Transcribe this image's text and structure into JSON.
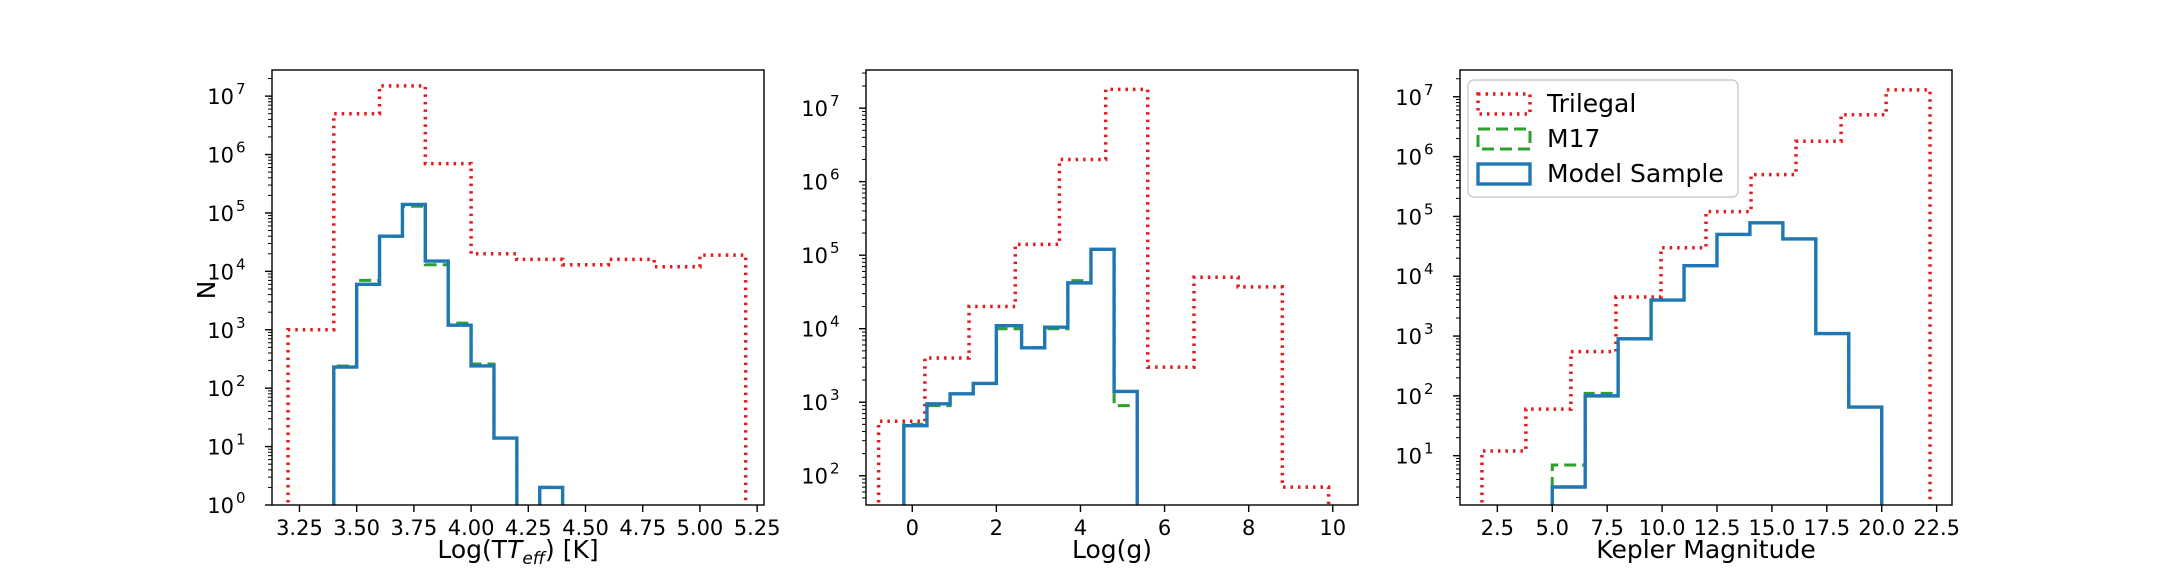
{
  "figure": {
    "background": "#ffffff"
  },
  "colors": {
    "trilegal": "#e41a1c",
    "m17": "#2ca02c",
    "model": "#1f77b4"
  },
  "legend": {
    "placement": "top-left of panel 3",
    "entries": [
      {
        "label": "Trilegal",
        "style": "dotted",
        "color": "#e41a1c"
      },
      {
        "label": "M17",
        "style": "dashed",
        "color": "#2ca02c"
      },
      {
        "label": "Model Sample",
        "style": "solid",
        "color": "#1f77b4"
      }
    ]
  },
  "chart_data": [
    {
      "type": "histogram-step",
      "title": "",
      "xlabel": "Log(T",
      "xlabel_subscript": "eff",
      "xlabel_suffix": ") [K]",
      "ylabel": "N",
      "yscale": "log",
      "xlim": [
        3.13,
        5.28
      ],
      "ylim": [
        1,
        28000000
      ],
      "xticks": [
        3.25,
        3.5,
        3.75,
        4.0,
        4.25,
        4.5,
        4.75,
        5.0,
        5.25
      ],
      "xtick_labels": [
        "3.25",
        "3.50",
        "3.75",
        "4.00",
        "4.25",
        "4.50",
        "4.75",
        "5.00",
        "5.25"
      ],
      "yticks": [
        1,
        10,
        100,
        1000,
        10000,
        100000,
        1000000,
        10000000
      ],
      "ytick_labels": [
        [
          "10",
          "0"
        ],
        [
          "10",
          "1"
        ],
        [
          "10",
          "2"
        ],
        [
          "10",
          "3"
        ],
        [
          "10",
          "4"
        ],
        [
          "10",
          "5"
        ],
        [
          "10",
          "6"
        ],
        [
          "10",
          "7"
        ]
      ],
      "series": [
        {
          "name": "Trilegal",
          "style": "dotted",
          "edges": [
            3.2,
            3.4,
            3.6,
            3.8,
            4.0,
            4.2,
            4.4,
            4.6,
            4.8,
            5.0,
            5.2
          ],
          "values": [
            1000,
            5000000,
            15000000,
            700000,
            20000,
            16000,
            13000,
            16000,
            12000,
            19000
          ]
        },
        {
          "name": "M17",
          "style": "dashed",
          "edges": [
            3.4,
            3.5,
            3.6,
            3.7,
            3.8,
            3.9,
            4.0,
            4.1,
            4.2,
            4.3,
            4.4
          ],
          "values": [
            240,
            7000,
            40000,
            130000,
            13000,
            1300,
            260,
            14,
            0,
            2
          ]
        },
        {
          "name": "Model Sample",
          "style": "solid",
          "edges": [
            3.4,
            3.5,
            3.6,
            3.7,
            3.8,
            3.9,
            4.0,
            4.1,
            4.2,
            4.3,
            4.4
          ],
          "values": [
            230,
            6000,
            40000,
            140000,
            15000,
            1200,
            240,
            14,
            0,
            2
          ]
        }
      ]
    },
    {
      "type": "histogram-step",
      "title": "",
      "xlabel": "Log(g)",
      "ylabel": "",
      "yscale": "log",
      "xlim": [
        -1.1,
        10.6
      ],
      "ylim": [
        40,
        33000000
      ],
      "xticks": [
        0,
        2,
        4,
        6,
        8,
        10
      ],
      "xtick_labels": [
        "0",
        "2",
        "4",
        "6",
        "8",
        "10"
      ],
      "yticks": [
        100,
        1000,
        10000,
        100000,
        1000000,
        10000000
      ],
      "ytick_labels": [
        [
          "10",
          "2"
        ],
        [
          "10",
          "3"
        ],
        [
          "10",
          "4"
        ],
        [
          "10",
          "5"
        ],
        [
          "10",
          "6"
        ],
        [
          "10",
          "7"
        ]
      ],
      "series": [
        {
          "name": "Trilegal",
          "style": "dotted",
          "edges": [
            -0.8,
            0.3,
            1.35,
            2.45,
            3.5,
            4.6,
            5.6,
            6.7,
            7.75,
            8.8,
            9.9
          ],
          "values": [
            550,
            4000,
            20000,
            140000,
            2000000,
            18000000,
            3000,
            50000,
            37000,
            70
          ]
        },
        {
          "name": "M17",
          "style": "dashed",
          "edges": [
            -0.2,
            0.35,
            0.9,
            1.45,
            2.0,
            2.6,
            3.15,
            3.7,
            4.25,
            4.8,
            5.35
          ],
          "values": [
            500,
            900,
            1300,
            1800,
            10000,
            5500,
            10000,
            45000,
            120000,
            900
          ]
        },
        {
          "name": "Model Sample",
          "style": "solid",
          "edges": [
            -0.2,
            0.35,
            0.9,
            1.45,
            2.0,
            2.6,
            3.15,
            3.7,
            4.25,
            4.8,
            5.35
          ],
          "values": [
            480,
            950,
            1300,
            1800,
            11000,
            5500,
            10500,
            42000,
            120000,
            1400
          ]
        }
      ]
    },
    {
      "type": "histogram-step",
      "title": "",
      "xlabel": "Kepler Magnitude",
      "ylabel": "",
      "yscale": "log",
      "xlim": [
        0.8,
        23.2
      ],
      "ylim": [
        1.5,
        28000000
      ],
      "xticks": [
        2.5,
        5.0,
        7.5,
        10.0,
        12.5,
        15.0,
        17.5,
        20.0,
        22.5
      ],
      "xtick_labels": [
        "2.5",
        "5.0",
        "7.5",
        "10.0",
        "12.5",
        "15.0",
        "17.5",
        "20.0",
        "22.5"
      ],
      "yticks": [
        10,
        100,
        1000,
        10000,
        100000,
        1000000,
        10000000
      ],
      "ytick_labels": [
        [
          "10",
          "1"
        ],
        [
          "10",
          "2"
        ],
        [
          "10",
          "3"
        ],
        [
          "10",
          "4"
        ],
        [
          "10",
          "5"
        ],
        [
          "10",
          "6"
        ],
        [
          "10",
          "7"
        ]
      ],
      "series": [
        {
          "name": "Trilegal",
          "style": "dotted",
          "edges": [
            1.8,
            3.8,
            5.85,
            7.9,
            9.95,
            12.0,
            14.05,
            16.1,
            18.15,
            20.2,
            22.2
          ],
          "values": [
            12,
            60,
            550,
            4500,
            30000,
            120000,
            500000,
            1800000,
            5000000,
            13000000
          ]
        },
        {
          "name": "M17",
          "style": "dashed",
          "edges": [
            5.0,
            6.5,
            8.0,
            9.5,
            11.0,
            12.5,
            14.0,
            15.5,
            17.0,
            18.5,
            20.0
          ],
          "values": [
            7,
            110,
            900,
            4000,
            15000,
            50000,
            78000,
            42000,
            1100,
            65
          ]
        },
        {
          "name": "Model Sample",
          "style": "solid",
          "edges": [
            5.0,
            6.5,
            8.0,
            9.5,
            11.0,
            12.5,
            14.0,
            15.5,
            17.0,
            18.5,
            20.0
          ],
          "values": [
            3,
            100,
            900,
            4000,
            15000,
            50000,
            78000,
            42000,
            1100,
            65
          ]
        }
      ]
    }
  ]
}
